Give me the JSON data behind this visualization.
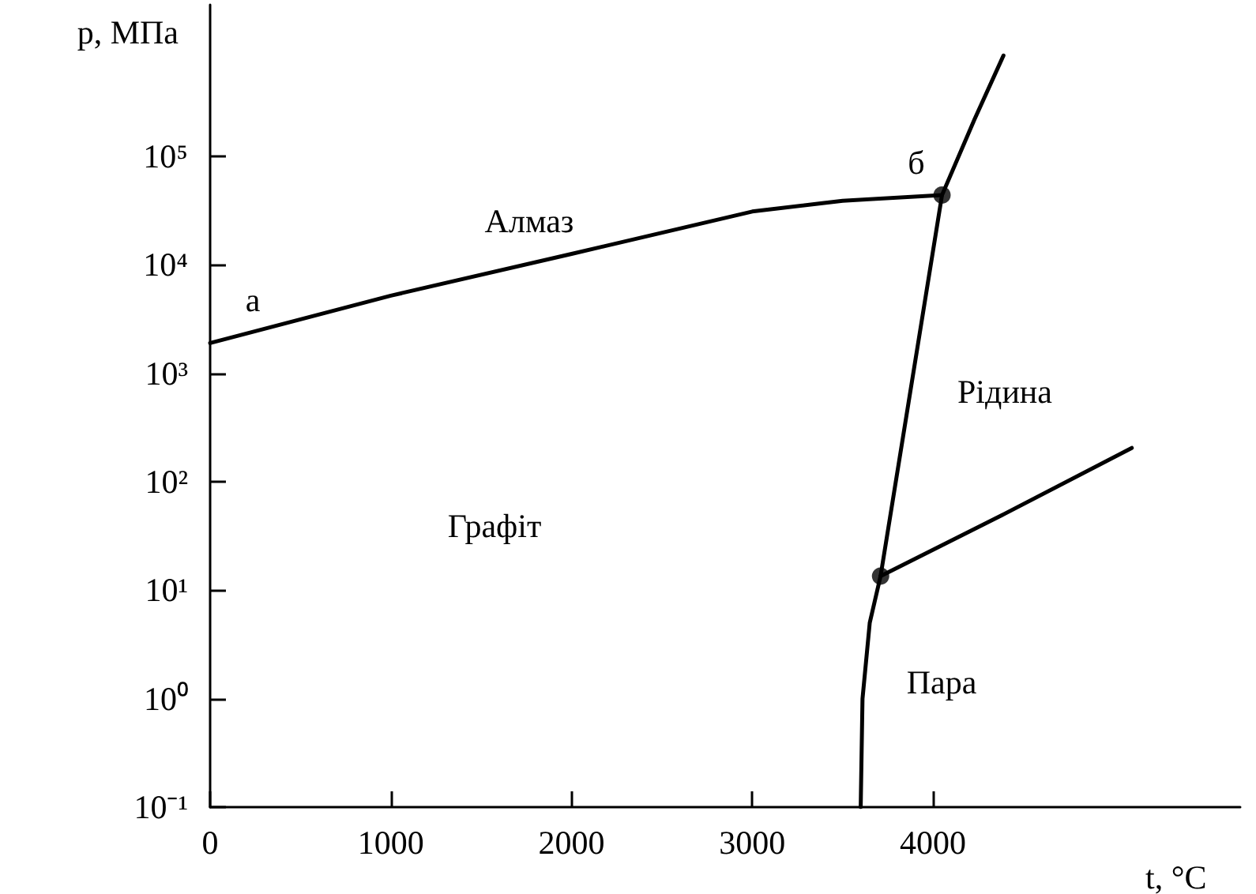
{
  "chart_data": {
    "type": "line",
    "xlabel": "t, °C",
    "ylabel": "p, МПа",
    "log": "y",
    "xlim": [
      0,
      5700
    ],
    "xticks": [
      0,
      1000,
      2000,
      3000,
      4000
    ],
    "ylim": [
      0.1,
      2500000
    ],
    "yticks": [
      {
        "value": 0.1,
        "label": "10⁻¹"
      },
      {
        "value": 1,
        "label": "10⁰"
      },
      {
        "value": 10,
        "label": "10¹"
      },
      {
        "value": 100,
        "label": "10²"
      },
      {
        "value": 1000,
        "label": "10³"
      },
      {
        "value": 10000,
        "label": "10⁴"
      },
      {
        "value": 100000,
        "label": "10⁵"
      }
    ],
    "grid": false,
    "marker": "none",
    "line_style": "solid",
    "series": [
      {
        "color": "#000000",
        "x": [
          0,
          1000,
          2000,
          3000,
          3500,
          4050
        ],
        "values": [
          1900,
          5200,
          12600,
          31000,
          39000,
          44000
        ]
      },
      {
        "color": "#000000",
        "x": [
          4050,
          4230,
          4390
        ],
        "values": [
          44000,
          220000,
          850000
        ]
      },
      {
        "color": "#000000",
        "x": [
          4050,
          3710
        ],
        "values": [
          44000,
          13.5
        ]
      },
      {
        "color": "#000000",
        "x": [
          3710,
          4380,
          5100
        ],
        "values": [
          13.5,
          49,
          205
        ]
      },
      {
        "color": "#000000",
        "x": [
          3600,
          3610,
          3650,
          3710
        ],
        "values": [
          0.1,
          1,
          5,
          13.5
        ]
      },
      {
        "type": "scatter",
        "marker": "circle",
        "color": "#000000",
        "x": [
          4050,
          3710
        ],
        "values": [
          44000,
          13.5
        ]
      }
    ],
    "annotations": [
      "а",
      "б",
      "Алмаз",
      "Рідина",
      "Графіт",
      "Пара"
    ]
  }
}
